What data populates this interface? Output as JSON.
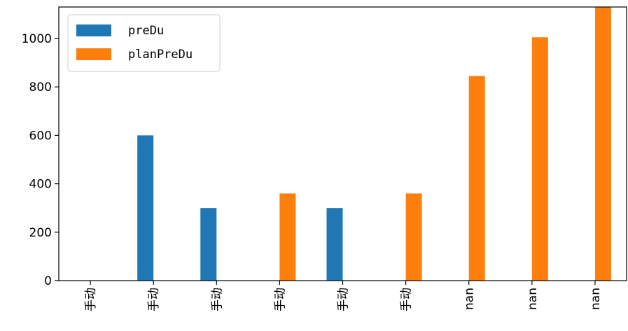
{
  "chart_data": {
    "type": "bar",
    "categories": [
      "手动",
      "手动",
      "手动",
      "手动",
      "手动",
      "手动",
      "nan",
      "nan",
      "nan"
    ],
    "series": [
      {
        "name": "preDu",
        "color": "#1f77b4",
        "values": [
          0,
          600,
          300,
          0,
          300,
          0,
          0,
          0,
          0
        ]
      },
      {
        "name": "planPreDu",
        "color": "#ff7f0e",
        "values": [
          0,
          0,
          0,
          360,
          0,
          360,
          845,
          1005,
          1130
        ]
      }
    ],
    "yticks": [
      0,
      200,
      400,
      600,
      800,
      1000
    ],
    "ylim": [
      0,
      1130
    ],
    "legend_position": "top-left",
    "grid": false
  }
}
